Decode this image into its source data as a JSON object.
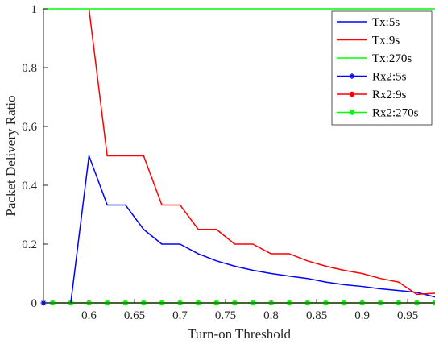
{
  "chart_data": {
    "type": "line",
    "xlabel": "Turn-on Threshold",
    "ylabel": "Packet Delivery Ratio",
    "xlim": [
      0.55,
      0.98
    ],
    "ylim": [
      0,
      1
    ],
    "xticks": [
      0.6,
      0.65,
      0.7,
      0.75,
      0.8,
      0.85,
      0.9,
      0.95
    ],
    "xtick_labels": [
      "0.6",
      "0.65",
      "0.7",
      "0.75",
      "0.8",
      "0.85",
      "0.9",
      "0.95"
    ],
    "yticks": [
      0,
      0.2,
      0.4,
      0.6,
      0.8,
      1
    ],
    "ytick_labels": [
      "0",
      "0.2",
      "0.4",
      "0.6",
      "0.8",
      "1"
    ],
    "grid": false,
    "legend_position": "top-right",
    "series": [
      {
        "name": "Tx:5s",
        "color": "#0000ff",
        "marker": "none",
        "x": [
          0.58,
          0.6,
          0.62,
          0.64,
          0.66,
          0.68,
          0.7,
          0.72,
          0.74,
          0.76,
          0.78,
          0.8,
          0.82,
          0.84,
          0.86,
          0.88,
          0.9,
          0.92,
          0.94,
          0.96,
          0.98
        ],
        "y": [
          0,
          0.5,
          0.333,
          0.333,
          0.25,
          0.2,
          0.2,
          0.167,
          0.143,
          0.125,
          0.111,
          0.1,
          0.091,
          0.083,
          0.071,
          0.062,
          0.056,
          0.048,
          0.042,
          0.036,
          0.02
        ]
      },
      {
        "name": "Tx:9s",
        "color": "#ff0000",
        "marker": "none",
        "x": [
          0.6,
          0.62,
          0.64,
          0.66,
          0.68,
          0.7,
          0.72,
          0.74,
          0.76,
          0.78,
          0.8,
          0.82,
          0.84,
          0.86,
          0.88,
          0.9,
          0.92,
          0.94,
          0.96,
          0.98
        ],
        "y": [
          1,
          0.5,
          0.5,
          0.5,
          0.333,
          0.333,
          0.25,
          0.25,
          0.2,
          0.2,
          0.167,
          0.167,
          0.143,
          0.125,
          0.111,
          0.1,
          0.083,
          0.071,
          0.029,
          0.033
        ]
      },
      {
        "name": "Tx:270s",
        "color": "#00ff00",
        "marker": "none",
        "x": [
          0.55,
          0.98
        ],
        "y": [
          1,
          1
        ]
      },
      {
        "name": "Rx2:5s",
        "color": "#0000ff",
        "marker": "star",
        "x": [
          0.55,
          0.98
        ],
        "y": [
          0,
          0
        ]
      },
      {
        "name": "Rx2:9s",
        "color": "#ff0000",
        "marker": "dot",
        "x": [
          0.56,
          0.58,
          0.6,
          0.62,
          0.64,
          0.66,
          0.68,
          0.7,
          0.72,
          0.74,
          0.76,
          0.78,
          0.8,
          0.82,
          0.84,
          0.86,
          0.88,
          0.9,
          0.92,
          0.94,
          0.96,
          0.98
        ],
        "y": [
          0,
          0,
          0,
          0,
          0,
          0,
          0,
          0,
          0,
          0,
          0,
          0,
          0,
          0,
          0,
          0,
          0,
          0,
          0,
          0,
          0,
          0
        ]
      },
      {
        "name": "Rx2:270s",
        "color": "#00ff00",
        "marker": "dot",
        "x": [
          0.56,
          0.58,
          0.6,
          0.62,
          0.64,
          0.66,
          0.68,
          0.7,
          0.72,
          0.74,
          0.76,
          0.78,
          0.8,
          0.82,
          0.84,
          0.86,
          0.88,
          0.9,
          0.92,
          0.94,
          0.96,
          0.98
        ],
        "y": [
          0,
          0,
          0,
          0,
          0,
          0,
          0,
          0,
          0,
          0,
          0,
          0,
          0,
          0,
          0,
          0,
          0,
          0,
          0,
          0,
          0,
          0
        ]
      }
    ]
  }
}
